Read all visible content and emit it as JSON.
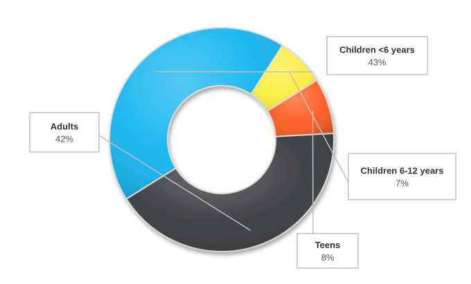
{
  "chart_data": {
    "type": "pie",
    "variant": "donut",
    "title": "",
    "legend": "none",
    "label_format": "category-and-percent",
    "slices": [
      {
        "label": "Children <6 years",
        "value": 43,
        "value_label": "43%",
        "color": "#12b4ef"
      },
      {
        "label": "Children 6-12 years",
        "value": 7,
        "value_label": "7%",
        "color": "#fbed3f"
      },
      {
        "label": "Teens",
        "value": 8,
        "value_label": "8%",
        "color": "#fb5b1e"
      },
      {
        "label": "Adults",
        "value": 42,
        "value_label": "42%",
        "color": "#37393c"
      }
    ]
  }
}
